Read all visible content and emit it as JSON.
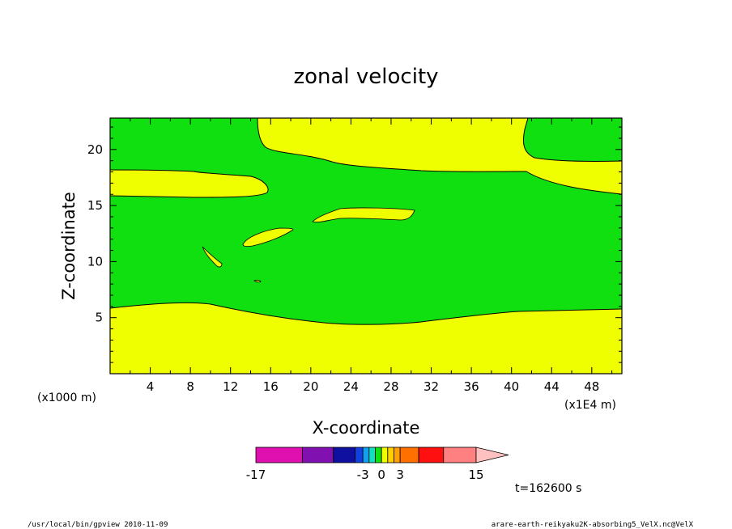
{
  "chart_data": {
    "type": "contour",
    "title": "zonal velocity",
    "xlabel": "X-coordinate",
    "ylabel": "Z-coordinate",
    "x_unit_label": "(x1E4 m)",
    "y_unit_label": "(x1000 m)",
    "x_ticks": [
      "4",
      "8",
      "12",
      "16",
      "20",
      "24",
      "28",
      "32",
      "36",
      "40",
      "44",
      "48"
    ],
    "y_ticks": [
      "5",
      "10",
      "15",
      "20"
    ],
    "xlim": [
      0,
      51
    ],
    "ylim": [
      0,
      22.8
    ],
    "colorbar": {
      "levels": [
        -17,
        -13,
        -9,
        -5,
        -3,
        -2,
        -1,
        0,
        1,
        2,
        3,
        5,
        9,
        15
      ],
      "colors": [
        "#e010b0",
        "#8010b0",
        "#1010a0",
        "#1040e0",
        "#10a0f0",
        "#10e0c0",
        "#10e010",
        "#f0ff00",
        "#ffd000",
        "#ffa000",
        "#ff7000",
        "#ff1010",
        "#ff8080",
        "#ffc0c0"
      ],
      "tick_labels": [
        "-17",
        "-3",
        "0",
        "3",
        "15"
      ],
      "accent_low": "#10e010",
      "accent_high": "#f0ff00"
    },
    "time_label": "t=162600 s",
    "footer_left": "/usr/local/bin/gpview   2010-11-09",
    "footer_right": "arare-earth-reikyaku2K-absorbing5_VelX.nc@VelX"
  }
}
